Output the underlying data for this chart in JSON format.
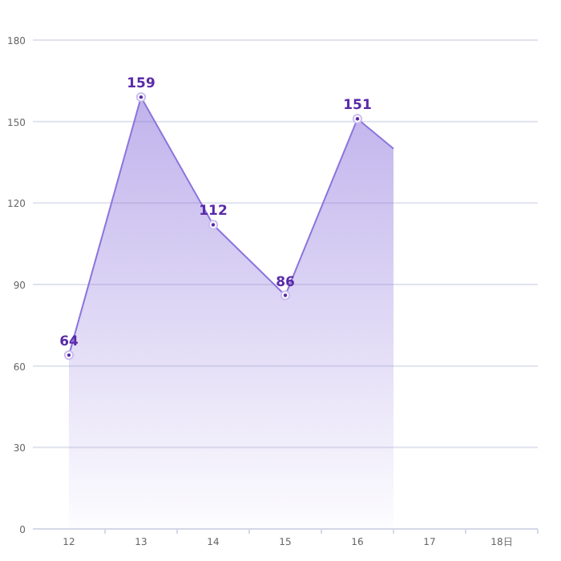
{
  "chart_data": {
    "type": "area",
    "x": [
      12,
      13,
      14,
      15,
      16,
      16.5
    ],
    "series": [
      {
        "color": "#8c74dc",
        "values": [
          64,
          159,
          112,
          86,
          151,
          140
        ],
        "value_labels": [
          "64",
          "159",
          "112",
          "86",
          "151",
          null
        ]
      }
    ],
    "xlim": [
      11.5,
      18.5
    ],
    "xticks": [
      {
        "value": 12,
        "label": "12"
      },
      {
        "value": 13,
        "label": "13"
      },
      {
        "value": 14,
        "label": "14"
      },
      {
        "value": 15,
        "label": "15"
      },
      {
        "value": 16,
        "label": "16"
      },
      {
        "value": 17,
        "label": "17"
      },
      {
        "value": 18,
        "label": "18日"
      },
      {
        "value": 12.5,
        "label": null
      },
      {
        "value": 13.5,
        "label": null
      },
      {
        "value": 14.5,
        "label": null
      },
      {
        "value": 15.5,
        "label": null
      },
      {
        "value": 16.5,
        "label": null
      },
      {
        "value": 17.5,
        "label": null
      },
      {
        "value": 18.5,
        "label": null
      }
    ],
    "ylim": [
      0,
      180
    ],
    "yticks": [
      0,
      30,
      60,
      90,
      120,
      150,
      180
    ],
    "grid": "y",
    "marker": "circle",
    "line_style": "solid"
  }
}
